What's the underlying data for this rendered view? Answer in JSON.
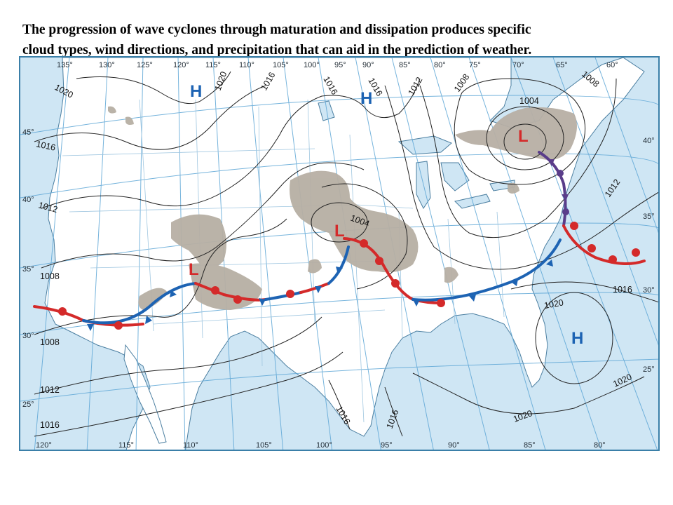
{
  "caption": {
    "line1": "The progression of wave cyclones through maturation and dissipation produces specific",
    "line2": "cloud types, wind directions, and precipitation that can aid in the prediction of weather."
  },
  "map": {
    "top_longitudes": [
      "135°",
      "130°",
      "125°",
      "120°",
      "115°",
      "110°",
      "105°",
      "100°",
      "95°",
      "90°",
      "85°",
      "80°",
      "75°",
      "70°",
      "65°",
      "60°"
    ],
    "bottom_longitudes": [
      "120°",
      "115°",
      "110°",
      "105°",
      "100°",
      "95°",
      "90°",
      "85°",
      "80°"
    ],
    "left_latitudes": [
      "45°",
      "40°",
      "35°",
      "30°",
      "25°"
    ],
    "right_latitudes": [
      "40°",
      "35°",
      "30°",
      "25°"
    ],
    "isobars": {
      "a1020": "1020",
      "a1016_nw": "1016",
      "a1016_mid": "1016",
      "a1016_mid2": "1016",
      "a1012_ne": "1012",
      "a1008_ne": "1008",
      "a1004_ne": "1004",
      "a1008_far": "1008",
      "a1016_left": "1016",
      "a1012_left": "1012",
      "a1008_left": "1008",
      "a1008_left2": "1008",
      "a1012_bl": "1012",
      "a1016_bl": "1016",
      "a1004_center": "1004",
      "a1012_right": "1012",
      "a1016_right": "1016",
      "a1020_fl": "1020",
      "a1020_br": "1020",
      "a1020_bottom": "1020",
      "a1016_gulf": "1016",
      "a1016_gulf2": "1016",
      "a1020_top": "1020"
    },
    "pressure_systems": {
      "H": "H",
      "L": "L"
    }
  },
  "colors": {
    "ocean": "#cfe6f4",
    "land": "#ffffff",
    "cloud": "#b7afa4",
    "warm_front": "#d42a2a",
    "cold_front": "#1d63b3",
    "occluded_front": "#5a3d8a"
  }
}
